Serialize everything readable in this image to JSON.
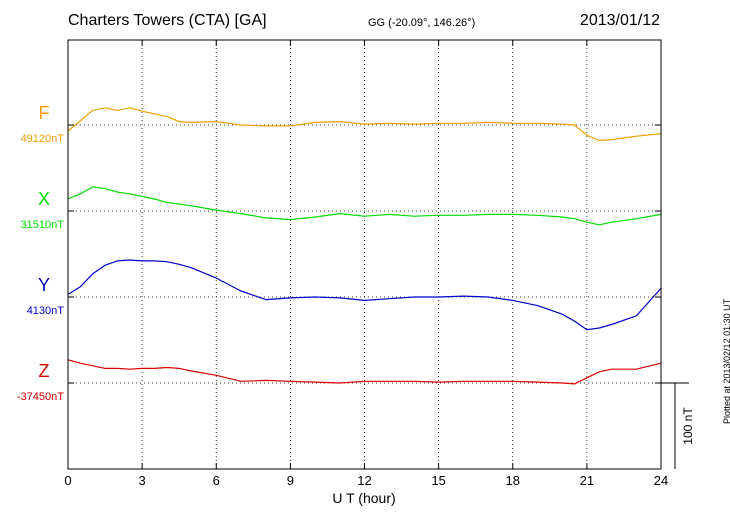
{
  "header": {
    "station": "Charters Towers (CTA)  [GA]",
    "coords": "GG (-20.09°, 146.26°)",
    "date": "2013/01/12",
    "plotted": "Plotted at 2013/02/12 01:30 UT"
  },
  "chart_data": {
    "type": "line",
    "xlabel": "U T (hour)",
    "xlim": [
      0,
      24
    ],
    "xticks": [
      0,
      3,
      6,
      9,
      12,
      15,
      18,
      21,
      24
    ],
    "grid": true,
    "scale_bar": {
      "label": "100 nT",
      "value_nT": 100
    },
    "series": [
      {
        "name": "F",
        "baseline_label": "49120nT",
        "baseline_nT": 49120,
        "color": "#f0a000",
        "x": [
          0,
          0.5,
          1,
          1.5,
          2,
          2.5,
          3,
          3.5,
          4,
          4.5,
          5,
          6,
          7,
          8,
          9,
          10,
          11,
          12,
          13,
          14,
          15,
          16,
          17,
          18,
          19,
          20,
          20.5,
          21,
          21.5,
          22,
          23,
          24
        ],
        "values": [
          49113,
          49125,
          49137,
          49140,
          49137,
          49140,
          49136,
          49133,
          49130,
          49124,
          49123,
          49124,
          49120,
          49119,
          49119,
          49123,
          49124,
          49121,
          49122,
          49121,
          49122,
          49122,
          49123,
          49122,
          49122,
          49121,
          49120,
          49108,
          49102,
          49103,
          49107,
          49110
        ]
      },
      {
        "name": "X",
        "baseline_label": "31510nT",
        "baseline_nT": 31510,
        "color": "#00dd00",
        "x": [
          0,
          0.5,
          1,
          1.5,
          2,
          2.5,
          3,
          3.5,
          4,
          4.5,
          5,
          6,
          7,
          8,
          9,
          10,
          11,
          12,
          13,
          14,
          15,
          16,
          17,
          18,
          19,
          20,
          20.5,
          21,
          21.5,
          22,
          23,
          24
        ],
        "values": [
          31524,
          31530,
          31538,
          31536,
          31532,
          31530,
          31527,
          31524,
          31520,
          31518,
          31516,
          31511,
          31507,
          31502,
          31500,
          31503,
          31507,
          31504,
          31506,
          31504,
          31505,
          31505,
          31506,
          31506,
          31505,
          31503,
          31501,
          31497,
          31494,
          31497,
          31501,
          31506
        ]
      },
      {
        "name": "Y",
        "baseline_label": "4130nT",
        "baseline_nT": 4130,
        "color": "#0000cc",
        "x": [
          0,
          0.5,
          1,
          1.5,
          2,
          2.5,
          3,
          3.5,
          4,
          4.5,
          5,
          6,
          7,
          8,
          9,
          10,
          11,
          12,
          13,
          14,
          15,
          16,
          17,
          18,
          19,
          20,
          20.5,
          21,
          21.5,
          22,
          23,
          24
        ],
        "values": [
          4133,
          4142,
          4157,
          4167,
          4172,
          4173,
          4172,
          4172,
          4171,
          4168,
          4164,
          4152,
          4137,
          4127,
          4129,
          4130,
          4129,
          4126,
          4128,
          4130,
          4130,
          4131,
          4130,
          4126,
          4120,
          4110,
          4102,
          4092,
          4094,
          4098,
          4108,
          4140
        ]
      },
      {
        "name": "Z",
        "baseline_label": "-37450nT",
        "baseline_nT": -37450,
        "color": "#dd0000",
        "x": [
          0,
          0.5,
          1,
          1.5,
          2,
          2.5,
          3,
          3.5,
          4,
          4.5,
          5,
          6,
          7,
          8,
          9,
          10,
          11,
          12,
          13,
          14,
          15,
          16,
          17,
          18,
          19,
          20,
          20.5,
          21,
          21.5,
          22,
          23,
          24
        ],
        "values": [
          -37423,
          -37427,
          -37430,
          -37433,
          -37433,
          -37434,
          -37433,
          -37433,
          -37432,
          -37433,
          -37436,
          -37441,
          -37448,
          -37447,
          -37448,
          -37449,
          -37450,
          -37448,
          -37448,
          -37448,
          -37449,
          -37448,
          -37448,
          -37448,
          -37449,
          -37450,
          -37451,
          -37444,
          -37437,
          -37434,
          -37434,
          -37427
        ]
      }
    ]
  }
}
